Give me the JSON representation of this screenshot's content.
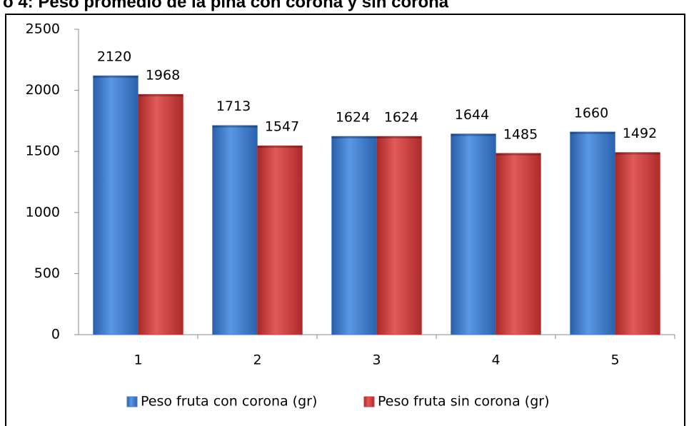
{
  "chart_data": {
    "type": "bar",
    "title": "o 4: Peso promedio de la piña con corona y sin corona",
    "categories": [
      "1",
      "2",
      "3",
      "4",
      "5"
    ],
    "series": [
      {
        "name": "Peso fruta con corona (gr)",
        "color": "#3f7fd0",
        "values": [
          2120,
          1713,
          1624,
          1644,
          1660
        ]
      },
      {
        "name": "Peso fruta sin corona (gr)",
        "color": "#d03c3c",
        "values": [
          1968,
          1547,
          1624,
          1485,
          1492
        ]
      }
    ],
    "ylim": [
      0,
      2500
    ],
    "yticks": [
      0,
      500,
      1000,
      1500,
      2000,
      2500
    ],
    "grid": false,
    "legend": "bottom"
  }
}
